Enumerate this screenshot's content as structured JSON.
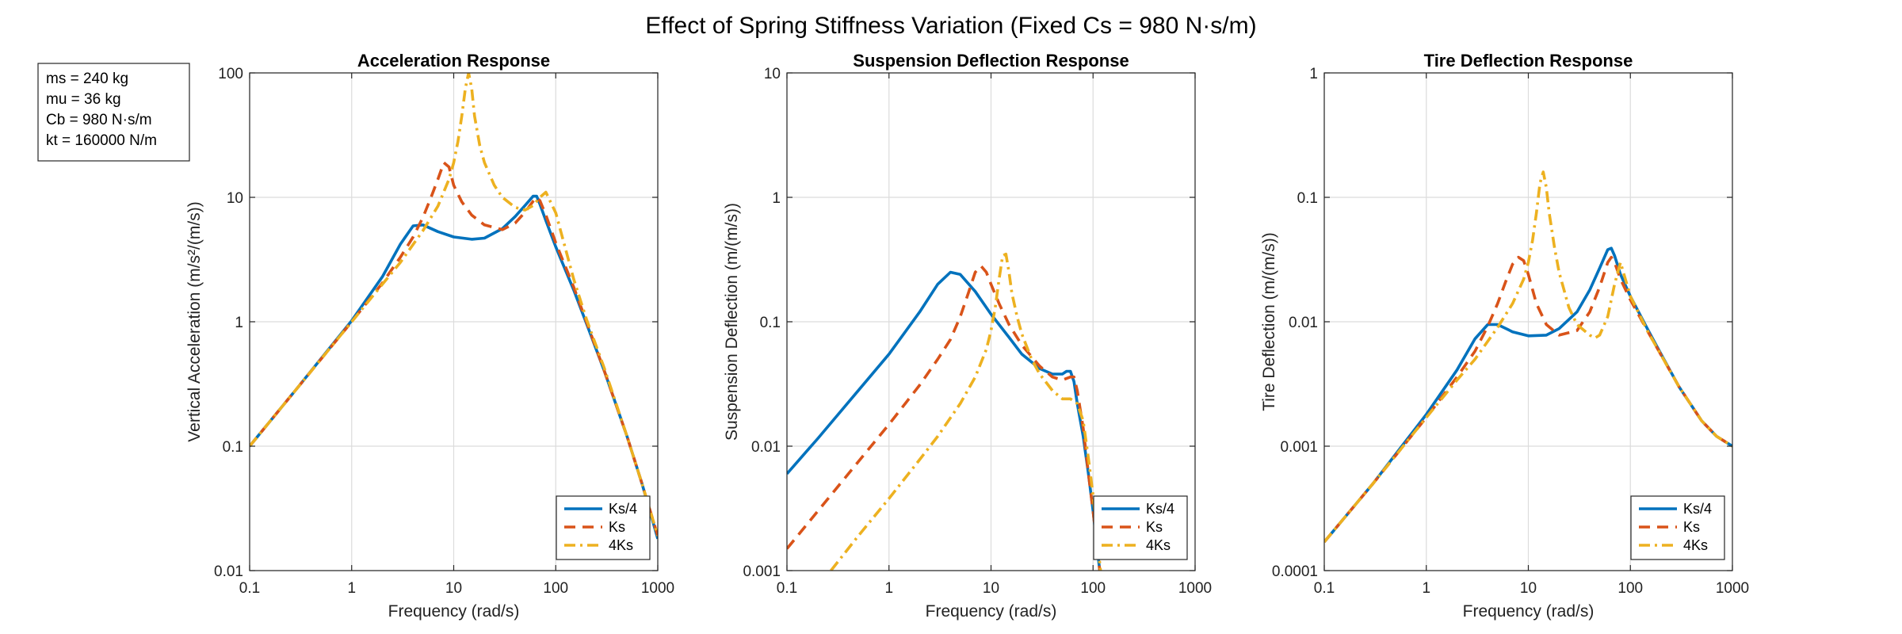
{
  "figure": {
    "suptitle": "Effect of Spring Stiffness Variation (Fixed Cs = 980 N·s/m)",
    "parameters": [
      "ms = 240 kg",
      "mu = 36 kg",
      "Cb = 980 N·s/m",
      "kt = 160000 N/m"
    ]
  },
  "chart_data": [
    {
      "type": "line",
      "title": "Acceleration Response",
      "xlabel": "Frequency (rad/s)",
      "ylabel": "Vertical Acceleration (m/s²/(m/s))",
      "xscale": "log",
      "yscale": "log",
      "xlim": [
        0.1,
        1000
      ],
      "ylim": [
        0.01,
        100
      ],
      "xticks": [
        0.1,
        1,
        10,
        100,
        1000
      ],
      "xticklabels": [
        "0.1",
        "1",
        "10",
        "100",
        "1000"
      ],
      "yticks": [
        0.01,
        0.1,
        1,
        10,
        100
      ],
      "yticklabels": [
        "0.01",
        "0.1",
        "1",
        "10",
        "100"
      ],
      "grid": true,
      "legend": "bottom-right",
      "series": [
        {
          "name": "Ks/4",
          "color": "#0072BD",
          "dash": "solid",
          "x": [
            0.1,
            0.3,
            1,
            2,
            3,
            4,
            5,
            7,
            10,
            15,
            20,
            30,
            40,
            50,
            60,
            65,
            70,
            80,
            100,
            150,
            200,
            300,
            500,
            700,
            1000
          ],
          "y": [
            0.1,
            0.3,
            1.02,
            2.3,
            4.2,
            5.9,
            6.0,
            5.3,
            4.8,
            4.6,
            4.7,
            5.6,
            7.0,
            8.6,
            10.2,
            10.2,
            8.8,
            6.5,
            4.0,
            1.8,
            0.97,
            0.4,
            0.12,
            0.05,
            0.018
          ]
        },
        {
          "name": "Ks",
          "color": "#D95319",
          "dash": "dashed",
          "x": [
            0.1,
            0.3,
            1,
            2,
            3,
            4,
            5,
            6,
            7,
            8,
            9,
            10,
            12,
            15,
            20,
            30,
            40,
            50,
            60,
            65,
            70,
            80,
            100,
            150,
            200,
            300,
            500,
            700,
            1000
          ],
          "y": [
            0.1,
            0.3,
            1.0,
            2.05,
            3.3,
            4.8,
            6.9,
            10.0,
            14.0,
            19.0,
            17.5,
            12.5,
            9.2,
            7.2,
            6.0,
            5.5,
            6.2,
            7.6,
            9.3,
            10.0,
            9.4,
            7.2,
            4.3,
            1.9,
            1.0,
            0.4,
            0.12,
            0.05,
            0.019
          ]
        },
        {
          "name": "4Ks",
          "color": "#EDB120",
          "dash": "dashdot",
          "x": [
            0.1,
            0.3,
            1,
            2,
            3,
            5,
            7,
            9,
            10,
            11,
            12,
            13,
            14,
            15,
            16,
            18,
            20,
            25,
            30,
            40,
            50,
            60,
            70,
            80,
            100,
            150,
            200,
            300,
            500,
            700,
            1000
          ],
          "y": [
            0.1,
            0.3,
            1.0,
            2.0,
            3.0,
            5.4,
            8.5,
            14.0,
            19.0,
            28.0,
            45.0,
            75.0,
            100.0,
            75.0,
            45.0,
            26.0,
            19.0,
            12.5,
            10.0,
            8.3,
            7.9,
            8.6,
            10.0,
            11.0,
            7.5,
            2.2,
            1.05,
            0.42,
            0.12,
            0.05,
            0.019
          ]
        }
      ]
    },
    {
      "type": "line",
      "title": "Suspension Deflection Response",
      "xlabel": "Frequency (rad/s)",
      "ylabel": "Suspension Deflection (m/(m/s))",
      "xscale": "log",
      "yscale": "log",
      "xlim": [
        0.1,
        1000
      ],
      "ylim": [
        0.001,
        10
      ],
      "xticks": [
        0.1,
        1,
        10,
        100,
        1000
      ],
      "xticklabels": [
        "0.1",
        "1",
        "10",
        "100",
        "1000"
      ],
      "yticks": [
        0.001,
        0.01,
        0.1,
        1,
        10
      ],
      "yticklabels": [
        "0.001",
        "0.01",
        "0.1",
        "1",
        "10"
      ],
      "grid": true,
      "legend": "bottom-right",
      "series": [
        {
          "name": "Ks/4",
          "color": "#0072BD",
          "dash": "solid",
          "x": [
            0.1,
            0.2,
            0.5,
            1,
            2,
            3,
            4,
            5,
            7,
            10,
            15,
            20,
            30,
            40,
            50,
            55,
            60,
            65,
            70,
            80,
            90,
            100,
            110,
            120
          ],
          "y": [
            0.006,
            0.0115,
            0.028,
            0.055,
            0.12,
            0.2,
            0.25,
            0.24,
            0.175,
            0.115,
            0.075,
            0.055,
            0.042,
            0.038,
            0.038,
            0.04,
            0.04,
            0.033,
            0.022,
            0.012,
            0.006,
            0.003,
            0.0015,
            0.0008
          ]
        },
        {
          "name": "Ks",
          "color": "#D95319",
          "dash": "dashed",
          "x": [
            0.1,
            0.2,
            0.5,
            1,
            2,
            3,
            4,
            5,
            6,
            7,
            8,
            9,
            10,
            12,
            15,
            20,
            30,
            40,
            50,
            60,
            65,
            70,
            80,
            90,
            100,
            110,
            120
          ],
          "y": [
            0.0015,
            0.003,
            0.0075,
            0.015,
            0.031,
            0.05,
            0.072,
            0.11,
            0.17,
            0.25,
            0.28,
            0.25,
            0.2,
            0.14,
            0.095,
            0.065,
            0.044,
            0.036,
            0.034,
            0.036,
            0.036,
            0.028,
            0.014,
            0.006,
            0.003,
            0.0015,
            0.0008
          ]
        },
        {
          "name": "4Ks",
          "color": "#EDB120",
          "dash": "dashdot",
          "x": [
            0.27,
            0.5,
            1,
            2,
            3,
            5,
            7,
            9,
            10,
            11,
            12,
            13,
            14,
            15,
            16,
            18,
            20,
            25,
            30,
            40,
            50,
            60,
            70,
            80,
            90,
            100,
            110,
            120
          ],
          "y": [
            0.001,
            0.0019,
            0.0038,
            0.0078,
            0.012,
            0.022,
            0.036,
            0.06,
            0.085,
            0.13,
            0.22,
            0.34,
            0.35,
            0.25,
            0.17,
            0.11,
            0.08,
            0.05,
            0.038,
            0.028,
            0.024,
            0.024,
            0.022,
            0.016,
            0.008,
            0.004,
            0.0018,
            0.0009
          ]
        }
      ]
    },
    {
      "type": "line",
      "title": "Tire Deflection Response",
      "xlabel": "Frequency (rad/s)",
      "ylabel": "Tire Deflection (m/(m/s))",
      "xscale": "log",
      "yscale": "log",
      "xlim": [
        0.1,
        1000
      ],
      "ylim": [
        0.0001,
        1
      ],
      "xticks": [
        0.1,
        1,
        10,
        100,
        1000
      ],
      "xticklabels": [
        "0.1",
        "1",
        "10",
        "100",
        "1000"
      ],
      "yticks": [
        0.0001,
        0.001,
        0.01,
        0.1,
        1
      ],
      "yticklabels": [
        "0.0001",
        "0.001",
        "0.01",
        "0.1",
        "1"
      ],
      "grid": true,
      "legend": "bottom-right",
      "series": [
        {
          "name": "Ks/4",
          "color": "#0072BD",
          "dash": "solid",
          "x": [
            0.1,
            0.3,
            1,
            2,
            3,
            4,
            5,
            7,
            10,
            15,
            20,
            30,
            40,
            50,
            60,
            65,
            70,
            80,
            100,
            150,
            200,
            300,
            500,
            700,
            1000
          ],
          "y": [
            0.00017,
            0.0005,
            0.0018,
            0.0041,
            0.0073,
            0.0095,
            0.0095,
            0.0083,
            0.0077,
            0.0078,
            0.0088,
            0.012,
            0.018,
            0.027,
            0.038,
            0.039,
            0.034,
            0.024,
            0.016,
            0.0085,
            0.0055,
            0.003,
            0.0016,
            0.0012,
            0.001
          ]
        },
        {
          "name": "Ks",
          "color": "#D95319",
          "dash": "dashed",
          "x": [
            0.1,
            0.3,
            1,
            2,
            3,
            4,
            5,
            6,
            7,
            8,
            9,
            10,
            12,
            15,
            20,
            30,
            40,
            50,
            60,
            65,
            70,
            80,
            100,
            150,
            200,
            300,
            500,
            700,
            1000
          ],
          "y": [
            0.00017,
            0.0005,
            0.0017,
            0.0036,
            0.0058,
            0.0092,
            0.014,
            0.021,
            0.029,
            0.033,
            0.031,
            0.024,
            0.014,
            0.0095,
            0.0078,
            0.0085,
            0.012,
            0.019,
            0.03,
            0.033,
            0.03,
            0.022,
            0.015,
            0.0082,
            0.0054,
            0.003,
            0.0016,
            0.0012,
            0.001
          ]
        },
        {
          "name": "4Ks",
          "color": "#EDB120",
          "dash": "dashdot",
          "x": [
            0.1,
            0.3,
            1,
            2,
            3,
            5,
            7,
            9,
            10,
            11,
            12,
            13,
            14,
            15,
            16,
            18,
            20,
            25,
            30,
            40,
            45,
            50,
            60,
            70,
            80,
            100,
            150,
            200,
            300,
            500,
            700,
            1000
          ],
          "y": [
            0.00017,
            0.0005,
            0.0017,
            0.0034,
            0.005,
            0.009,
            0.014,
            0.022,
            0.03,
            0.045,
            0.075,
            0.13,
            0.16,
            0.12,
            0.075,
            0.04,
            0.025,
            0.013,
            0.0095,
            0.0078,
            0.0074,
            0.0078,
            0.011,
            0.02,
            0.03,
            0.016,
            0.0082,
            0.0054,
            0.003,
            0.0016,
            0.0012,
            0.001
          ]
        }
      ]
    }
  ]
}
